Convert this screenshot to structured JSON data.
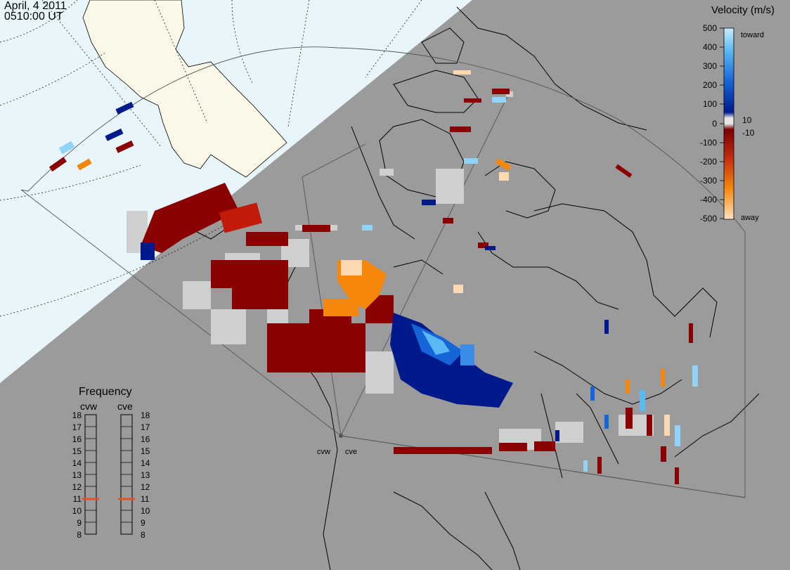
{
  "header": {
    "date": "April, 4 2011",
    "time": "0510:00 UT"
  },
  "velocity_scale": {
    "title": "Velocity (m/s)",
    "ticks": [
      "500",
      "400",
      "300",
      "200",
      "100",
      "10",
      "0",
      "-10",
      "-100",
      "-200",
      "-300",
      "-400",
      "-500"
    ],
    "toward_label": "toward",
    "away_label": "away"
  },
  "frequency_panel": {
    "title": "Frequency",
    "radars": [
      {
        "name": "cvw",
        "frequency_mhz": 11
      },
      {
        "name": "cve",
        "frequency_mhz": 11
      }
    ],
    "ticks": [
      "18",
      "17",
      "16",
      "15",
      "14",
      "13",
      "12",
      "11",
      "10",
      "9",
      "8"
    ],
    "marker_color": "#e8521e"
  },
  "sites": [
    {
      "label": "cvw"
    },
    {
      "label": "cve"
    }
  ],
  "colors": {
    "ocean": "#e8f6fc",
    "land_day": "#fbf8e8",
    "night": "#9b9b9b",
    "ground_scatter": "#cfcfcf",
    "toward_strong": "#8fd3f7",
    "toward_mid": "#1e88e5",
    "toward_weak": "#001a8c",
    "away_weak": "#8b0000",
    "away_mid": "#e8521e",
    "away_strong": "#fdd8b0"
  }
}
